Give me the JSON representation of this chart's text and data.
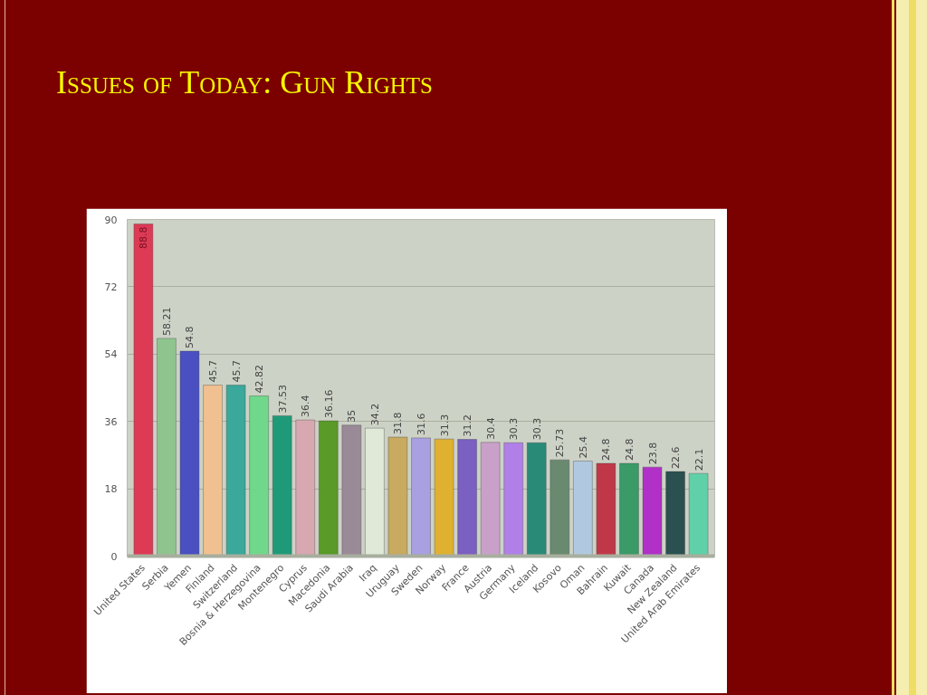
{
  "chart_data": {
    "type": "bar",
    "title": "Issues of Today: Gun Rights",
    "categories": [
      "United States",
      "Serbia",
      "Yemen",
      "Finland",
      "Switzerland",
      "Bosnia & Herzegovina",
      "Montenegro",
      "Cyprus",
      "Macedonia",
      "Saudi Arabia",
      "Iraq",
      "Uruguay",
      "Sweden",
      "Norway",
      "France",
      "Austria",
      "Germany",
      "Iceland",
      "Kosovo",
      "Oman",
      "Bahrain",
      "Kuwait",
      "Canada",
      "New Zealand",
      "United Arab Emirates"
    ],
    "values": [
      88.8,
      58.21,
      54.8,
      45.7,
      45.7,
      42.82,
      37.53,
      36.4,
      36.16,
      35,
      34.2,
      31.8,
      31.6,
      31.3,
      31.2,
      30.4,
      30.3,
      30.3,
      25.73,
      25.4,
      24.8,
      24.8,
      23.8,
      22.6,
      22.1
    ],
    "colors": [
      "#dc3a55",
      "#8fc48f",
      "#4a50c0",
      "#f0c090",
      "#3aa89a",
      "#6fd88a",
      "#1f9a78",
      "#d8a8b0",
      "#5a9a28",
      "#9a8a98",
      "#e0e8d8",
      "#c8aa60",
      "#a8a0e0",
      "#e0b030",
      "#7a60c0",
      "#c8a0c8",
      "#b080e8",
      "#2a8a78",
      "#6a8a70",
      "#b0c8e0",
      "#c03848",
      "#3a9a68",
      "#b030c8",
      "#2a5050",
      "#60d0a8"
    ],
    "ylim": [
      0,
      90
    ],
    "yticks": [
      0,
      18,
      36,
      54,
      72,
      90
    ],
    "grid": "y",
    "data_labels": true
  }
}
